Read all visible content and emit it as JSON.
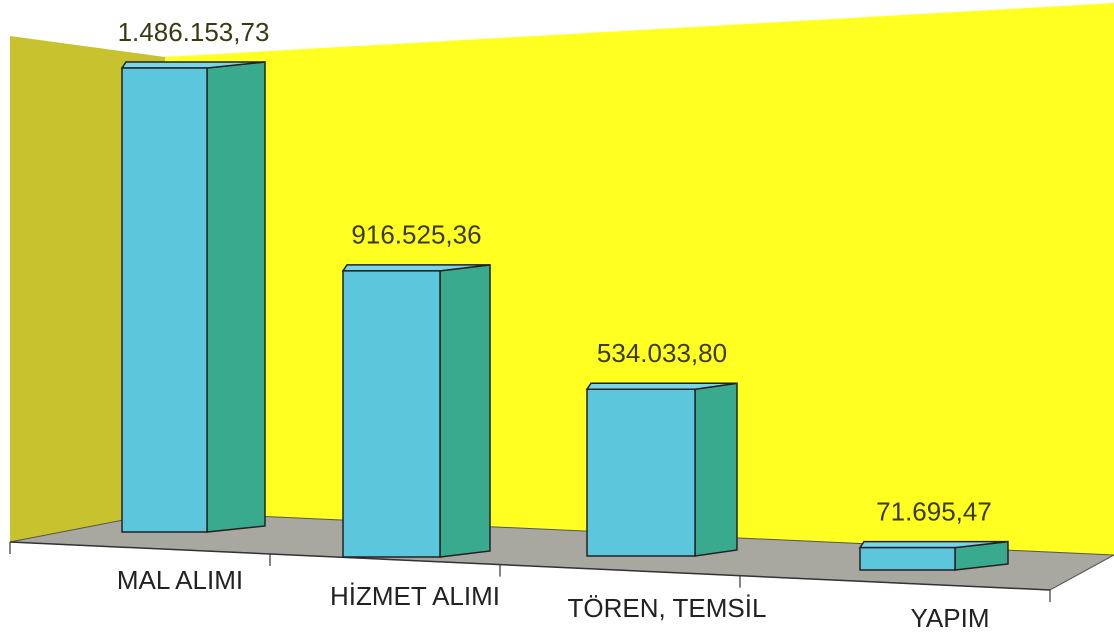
{
  "chart_data": {
    "type": "bar",
    "categories": [
      "MAL ALIMI",
      "HİZMET ALIMI",
      "TÖREN, TEMSİL",
      "YAPIM"
    ],
    "values": [
      1486153.73,
      916525.36,
      534033.8,
      71695.47
    ],
    "value_labels": [
      "1.486.153,73",
      "916.525,36",
      "534.033,80",
      "71.695,47"
    ],
    "color": "#5cc6dc"
  }
}
